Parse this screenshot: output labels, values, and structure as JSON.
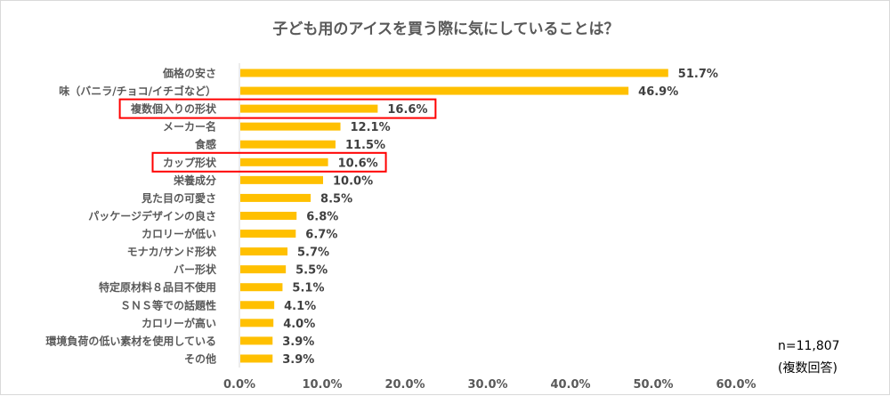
{
  "chart_data": {
    "type": "bar",
    "orientation": "horizontal",
    "title": "子ども用のアイスを買う際に気にしていることは？",
    "categories": [
      "価格の安さ",
      "味（バニラ/チョコ/イチゴなど）",
      "複数個入りの形状",
      "メーカー名",
      "食感",
      "カップ形状",
      "栄養成分",
      "見た目の可愛さ",
      "パッケージデザインの良さ",
      "カロリーが低い",
      "モナカ/サンド形状",
      "バー形状",
      "特定原材料８品目不使用",
      "ＳＮＳ等での話題性",
      "カロリーが高い",
      "環境負荷の低い素材を使用している",
      "その他"
    ],
    "values": [
      51.7,
      46.9,
      16.6,
      12.1,
      11.5,
      10.6,
      10.0,
      8.5,
      6.8,
      6.7,
      5.7,
      5.5,
      5.1,
      4.1,
      4.0,
      3.9,
      3.9
    ],
    "value_labels": [
      "51.7%",
      "46.9%",
      "16.6%",
      "12.1%",
      "11.5%",
      "10.6%",
      "10.0%",
      "8.5%",
      "6.8%",
      "6.7%",
      "5.7%",
      "5.5%",
      "5.1%",
      "4.1%",
      "4.0%",
      "3.9%",
      "3.9%"
    ],
    "xlim": [
      0,
      60
    ],
    "xticks": [
      "0.0%",
      "10.0%",
      "20.0%",
      "30.0%",
      "40.0%",
      "50.0%",
      "60.0%"
    ],
    "grid": false,
    "highlighted_categories": [
      "複数個入りの形状",
      "カップ形状"
    ],
    "colors": {
      "bar": "#FFC000",
      "highlight": "#FF0000",
      "axis": "#d9d9d9"
    }
  },
  "notes": {
    "sample": "n=11,807",
    "multi": "(複数回答)"
  }
}
